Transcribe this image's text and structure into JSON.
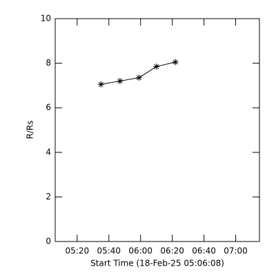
{
  "chart_data": {
    "type": "line",
    "xlabel": "Start Time (18-Feb-25 05:06:08)",
    "ylabel": "R/Rs",
    "x": [
      335,
      347,
      359,
      370,
      382
    ],
    "series": [
      {
        "values": [
          7.05,
          7.2,
          7.35,
          7.85,
          8.05
        ],
        "color": "#000000"
      }
    ],
    "xlim": [
      306.13,
      435
    ],
    "xticks": [
      {
        "value": 320,
        "label": "05:20"
      },
      {
        "value": 340,
        "label": "05:40"
      },
      {
        "value": 360,
        "label": "06:00"
      },
      {
        "value": 380,
        "label": "06:20"
      },
      {
        "value": 400,
        "label": "06:40"
      },
      {
        "value": 420,
        "label": "07:00"
      }
    ],
    "ylim": [
      0,
      10
    ],
    "yticks": [
      0,
      2,
      4,
      6,
      8,
      10
    ]
  }
}
